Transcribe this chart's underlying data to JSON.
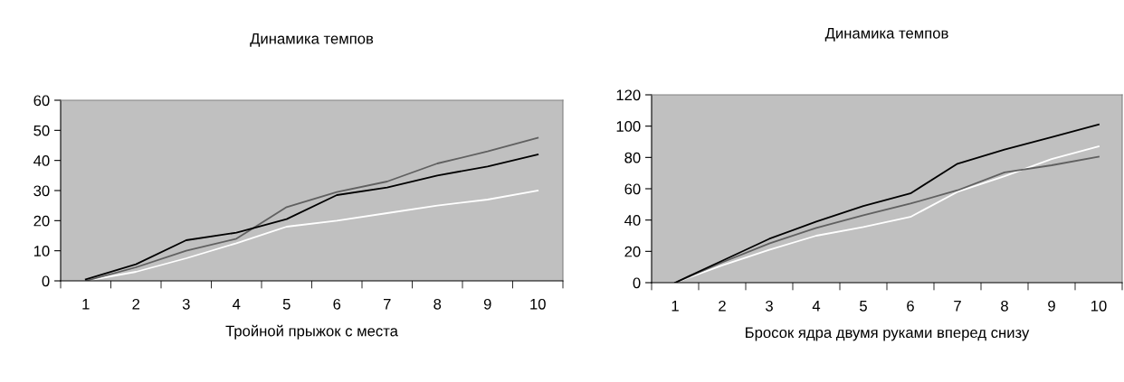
{
  "chart_data": [
    {
      "type": "line",
      "title": "Динамика темпов",
      "xlabel": "Тройной прыжок с места",
      "categories": [
        "1",
        "2",
        "3",
        "4",
        "5",
        "6",
        "7",
        "8",
        "9",
        "10"
      ],
      "ylim": [
        0,
        60
      ],
      "yticks": [
        0,
        10,
        20,
        30,
        40,
        50,
        60
      ],
      "grid": false,
      "legend": false,
      "series": [
        {
          "color": "#ffffff",
          "values": [
            0,
            3,
            7.5,
            12.5,
            18,
            20,
            22.5,
            25,
            27,
            30
          ]
        },
        {
          "color": "#606060",
          "values": [
            0,
            4.5,
            10,
            14,
            24.5,
            29.5,
            33,
            39,
            43,
            47.5
          ]
        },
        {
          "color": "#000000",
          "values": [
            0.5,
            5.5,
            13.5,
            16,
            20.5,
            28.5,
            31,
            35,
            38,
            42
          ]
        }
      ]
    },
    {
      "type": "line",
      "title": "Динамика темпов",
      "xlabel": "Бросок ядра двумя руками вперед снизу",
      "categories": [
        "1",
        "2",
        "3",
        "4",
        "5",
        "6",
        "7",
        "8",
        "9",
        "10"
      ],
      "ylim": [
        0,
        120
      ],
      "yticks": [
        0,
        20,
        40,
        60,
        80,
        100,
        120
      ],
      "grid": false,
      "legend": false,
      "series": [
        {
          "color": "#ffffff",
          "values": [
            0,
            11,
            21,
            30,
            35.5,
            42,
            58,
            68,
            79,
            87
          ]
        },
        {
          "color": "#606060",
          "values": [
            0,
            13,
            25,
            35,
            43,
            50.5,
            59,
            70.5,
            75,
            80.5
          ]
        },
        {
          "color": "#000000",
          "values": [
            0,
            14,
            28,
            39,
            49,
            57,
            76,
            85,
            93,
            101
          ]
        }
      ]
    }
  ]
}
